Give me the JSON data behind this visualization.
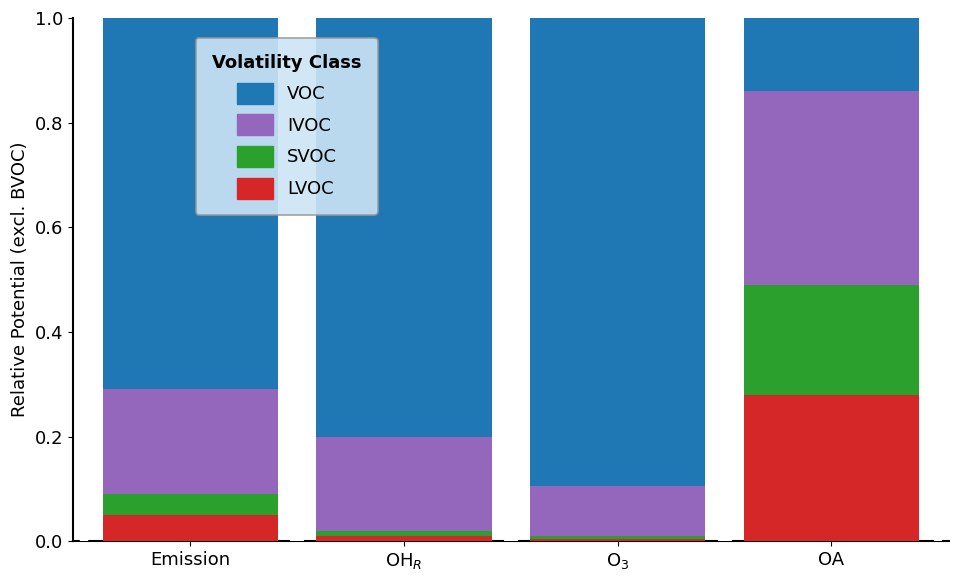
{
  "categories": [
    "Emission",
    "OH$_{R}$",
    "O$_3$",
    "OA"
  ],
  "segments": {
    "LVOC": [
      0.05,
      0.01,
      0.005,
      0.28
    ],
    "SVOC": [
      0.04,
      0.01,
      0.005,
      0.21
    ],
    "IVOC": [
      0.2,
      0.18,
      0.095,
      0.37
    ],
    "VOC": [
      0.71,
      0.8,
      0.895,
      0.14
    ]
  },
  "colors": {
    "LVOC": "#d62728",
    "SVOC": "#2ca02c",
    "IVOC": "#9467bd",
    "VOC": "#1f77b4"
  },
  "ylabel": "Relative Potential (excl. BVOC)",
  "ylim": [
    0,
    1.0
  ],
  "yticks": [
    0.0,
    0.2,
    0.4,
    0.6,
    0.8,
    1.0
  ],
  "legend_title": "Volatility Class",
  "bar_width": 0.82,
  "figsize": [
    9.6,
    5.82
  ],
  "dpi": 100,
  "legend_facecolor": "#cce5f5",
  "legend_edgecolor": "#999999",
  "background_color": "#ffffff",
  "tick_labels": [
    "Emission",
    "OH$_R$",
    "O$_3$",
    "OA"
  ],
  "legend_order": [
    "VOC",
    "IVOC",
    "SVOC",
    "LVOC"
  ]
}
